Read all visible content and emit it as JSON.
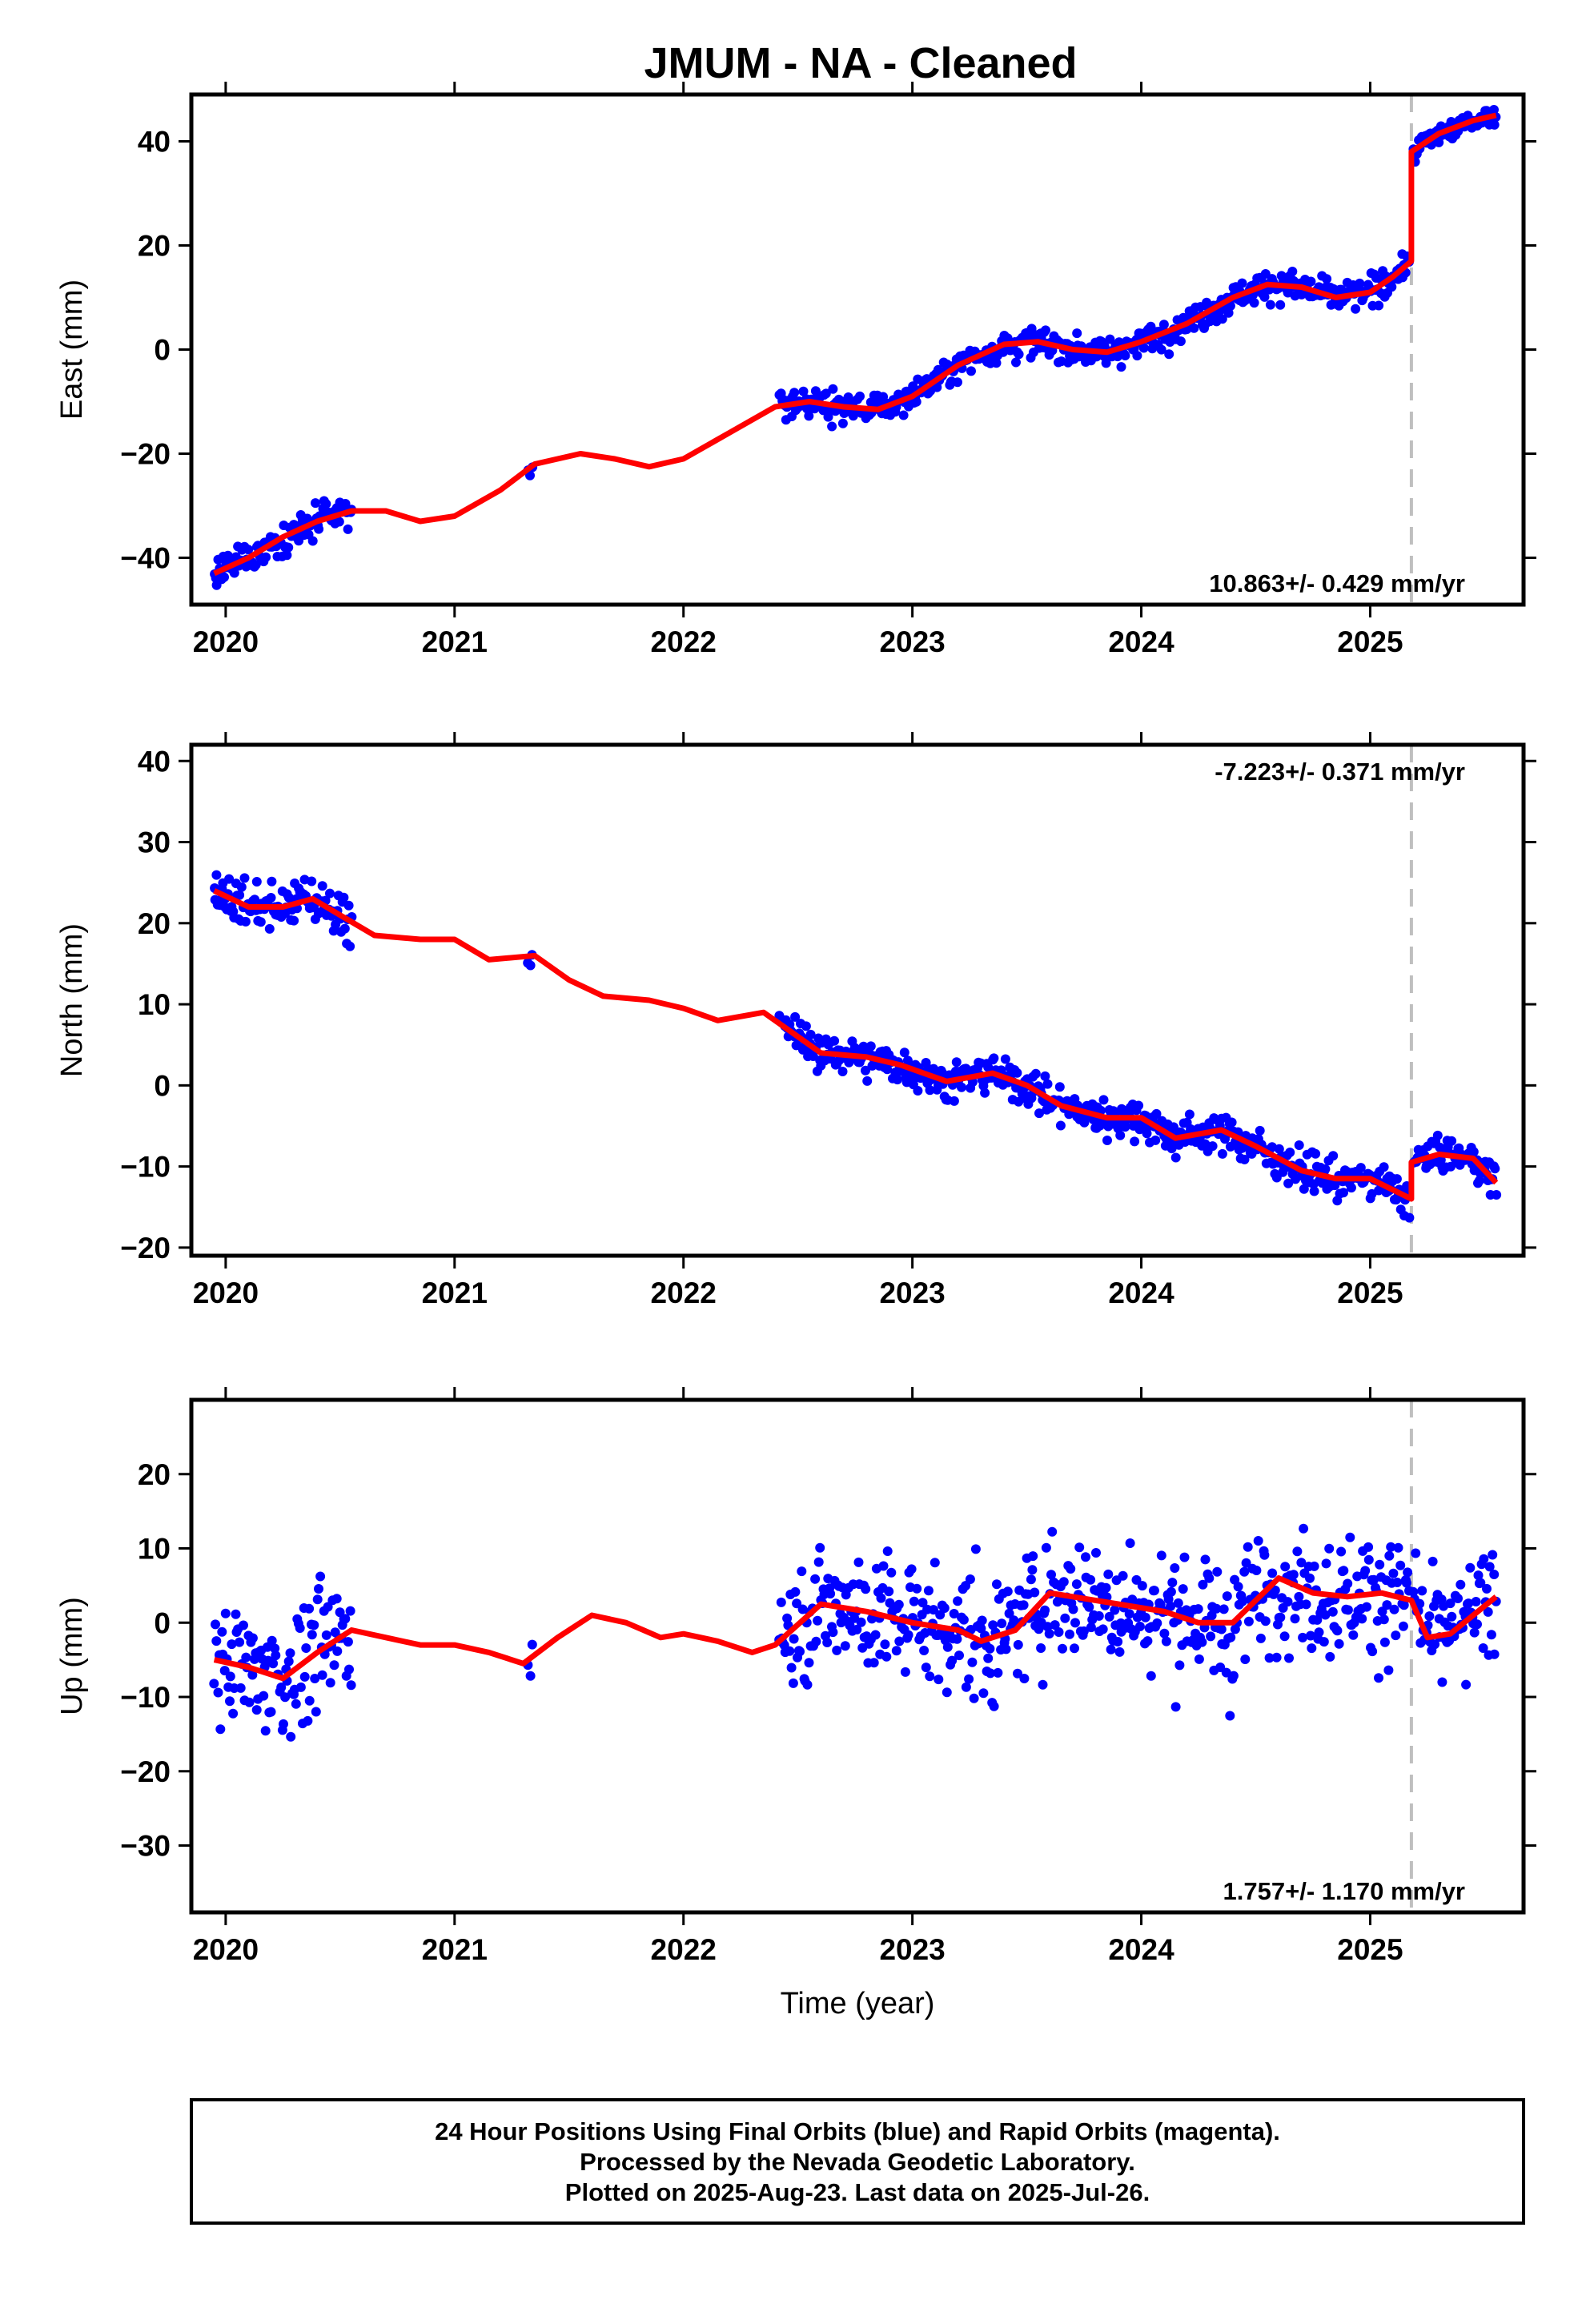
{
  "title": "JMUM  - NA - Cleaned",
  "colors": {
    "final": "#0000ff",
    "rapid": "#ff00ff",
    "model": "#ff0000",
    "event_line": "#bfbfbf"
  },
  "footer": {
    "lines": [
      "24 Hour Positions Using Final Orbits (blue) and Rapid Orbits (magenta).",
      "Processed by the Nevada Geodetic Laboratory.",
      "Plotted on 2025-Aug-23. Last data on 2025-Jul-26."
    ]
  },
  "chart_data": [
    {
      "type": "scatter",
      "ylabel": "East (mm)",
      "xlabel": "",
      "xlim": [
        2019.85,
        2025.67
      ],
      "ylim": [
        -49,
        49
      ],
      "xticks": [
        2020,
        2021,
        2022,
        2023,
        2024,
        2025
      ],
      "xtick_labels": [
        "2020",
        "2021",
        "2022",
        "2023",
        "2024",
        "2025"
      ],
      "yticks": [
        -40,
        -20,
        0,
        20,
        40
      ],
      "ytick_labels": [
        "−40",
        "−20",
        "0",
        "20",
        "40"
      ],
      "rate_label": "10.863+/- 0.429 mm/yr",
      "rate_position": "bottom-right",
      "event_line_x": 2025.18,
      "model": {
        "x": [
          2019.95,
          2020.1,
          2020.25,
          2020.4,
          2020.55,
          2020.7,
          2020.85,
          2021.0,
          2021.2,
          2021.35,
          2021.55,
          2021.7,
          2021.85,
          2022.0,
          2022.2,
          2022.4,
          2022.55,
          2022.7,
          2022.85,
          2023.0,
          2023.2,
          2023.4,
          2023.55,
          2023.7,
          2023.85,
          2024.0,
          2024.2,
          2024.4,
          2024.55,
          2024.7,
          2024.85,
          2025.0,
          2025.1,
          2025.18,
          2025.18,
          2025.3,
          2025.45,
          2025.55
        ],
        "y": [
          -43,
          -40,
          -36,
          -33,
          -31,
          -31,
          -33,
          -32,
          -27,
          -22,
          -20,
          -21,
          -22.5,
          -21,
          -16,
          -11,
          -10,
          -11,
          -11.5,
          -9,
          -3,
          1,
          1.5,
          0,
          -0.5,
          1.5,
          5,
          10,
          12.5,
          12,
          10,
          11,
          14,
          17,
          38,
          41.5,
          44,
          45
        ]
      },
      "series": [
        {
          "name": "Final Orbits",
          "segments": [
            {
              "x0": 2019.95,
              "x1": 2020.55,
              "n": 110,
              "spread": 2.3
            },
            {
              "x0": 2021.32,
              "x1": 2021.34,
              "n": 3,
              "spread": 1.0
            },
            {
              "x0": 2022.42,
              "x1": 2025.17,
              "n": 520,
              "spread": 2.0
            },
            {
              "x0": 2025.19,
              "x1": 2025.55,
              "n": 70,
              "spread": 1.5
            }
          ]
        }
      ]
    },
    {
      "type": "scatter",
      "ylabel": "North (mm)",
      "xlabel": "",
      "xlim": [
        2019.85,
        2025.67
      ],
      "ylim": [
        -21,
        42
      ],
      "xticks": [
        2020,
        2021,
        2022,
        2023,
        2024,
        2025
      ],
      "xtick_labels": [
        "2020",
        "2021",
        "2022",
        "2023",
        "2024",
        "2025"
      ],
      "yticks": [
        -20,
        -10,
        0,
        10,
        20,
        30,
        40
      ],
      "ytick_labels": [
        "−20",
        "−10",
        "0",
        "10",
        "20",
        "30",
        "40"
      ],
      "rate_label": "-7.223+/- 0.371 mm/yr",
      "rate_position": "top-right",
      "event_line_x": 2025.18,
      "model": {
        "x": [
          2019.95,
          2020.1,
          2020.25,
          2020.38,
          2020.5,
          2020.65,
          2020.85,
          2021.0,
          2021.15,
          2021.35,
          2021.5,
          2021.65,
          2021.85,
          2022.0,
          2022.15,
          2022.35,
          2022.45,
          2022.6,
          2022.8,
          2022.95,
          2023.15,
          2023.35,
          2023.5,
          2023.65,
          2023.85,
          2024.0,
          2024.15,
          2024.35,
          2024.5,
          2024.7,
          2024.85,
          2025.0,
          2025.18,
          2025.18,
          2025.3,
          2025.45,
          2025.55
        ],
        "y": [
          24,
          22,
          22,
          23,
          21,
          18.5,
          18,
          18,
          15.5,
          16,
          13,
          11,
          10.5,
          9.5,
          8,
          9,
          7,
          4,
          3.5,
          2.5,
          0.5,
          1.5,
          0,
          -2.5,
          -4,
          -4,
          -6.5,
          -5.5,
          -7.5,
          -10.5,
          -11.5,
          -11.5,
          -14,
          -9.5,
          -8.5,
          -9,
          -12
        ]
      },
      "series": [
        {
          "name": "Final Orbits",
          "segments": [
            {
              "x0": 2019.95,
              "x1": 2020.55,
              "n": 110,
              "spread": 2.0
            },
            {
              "x0": 2021.32,
              "x1": 2021.34,
              "n": 3,
              "spread": 1.0
            },
            {
              "x0": 2022.42,
              "x1": 2025.17,
              "n": 520,
              "spread": 1.6
            },
            {
              "x0": 2025.19,
              "x1": 2025.55,
              "n": 70,
              "spread": 1.6
            }
          ]
        }
      ]
    },
    {
      "type": "scatter",
      "ylabel": "Up (mm)",
      "xlabel": "Time (year)",
      "xlim": [
        2019.85,
        2025.67
      ],
      "ylim": [
        -39,
        30
      ],
      "xticks": [
        2020,
        2021,
        2022,
        2023,
        2024,
        2025
      ],
      "xtick_labels": [
        "2020",
        "2021",
        "2022",
        "2023",
        "2024",
        "2025"
      ],
      "yticks": [
        -30,
        -20,
        -10,
        0,
        10,
        20
      ],
      "ytick_labels": [
        "−30",
        "−20",
        "−10",
        "0",
        "10",
        "20"
      ],
      "rate_label": "1.757+/- 1.170 mm/yr",
      "rate_position": "bottom-right",
      "event_line_x": 2025.18,
      "model": {
        "x": [
          2019.95,
          2020.1,
          2020.25,
          2020.4,
          2020.55,
          2020.7,
          2020.85,
          2021.0,
          2021.15,
          2021.3,
          2021.45,
          2021.6,
          2021.75,
          2021.9,
          2022.0,
          2022.15,
          2022.3,
          2022.4,
          2022.6,
          2022.8,
          2023.0,
          2023.2,
          2023.3,
          2023.45,
          2023.6,
          2023.8,
          2024.0,
          2024.1,
          2024.25,
          2024.4,
          2024.6,
          2024.75,
          2024.9,
          2025.05,
          2025.18,
          2025.25,
          2025.35,
          2025.45,
          2025.55
        ],
        "y": [
          -5,
          -6,
          -7.5,
          -4,
          -1,
          -2,
          -3,
          -3,
          -4,
          -5.5,
          -2,
          1,
          0,
          -2,
          -1.5,
          -2.5,
          -4,
          -3,
          2.5,
          1.5,
          0,
          -1,
          -2.5,
          -1,
          4,
          3,
          2,
          1.5,
          0,
          0,
          6,
          4,
          3.5,
          4,
          3,
          -2,
          -1.5,
          1,
          3.5
        ]
      },
      "series": [
        {
          "name": "Final Orbits",
          "segments": [
            {
              "x0": 2019.95,
              "x1": 2020.55,
              "n": 110,
              "spread": 5.5
            },
            {
              "x0": 2021.32,
              "x1": 2021.34,
              "n": 3,
              "spread": 1.5
            },
            {
              "x0": 2022.42,
              "x1": 2025.17,
              "n": 520,
              "spread": 6.0
            },
            {
              "x0": 2025.19,
              "x1": 2025.55,
              "n": 70,
              "spread": 5.0
            }
          ]
        }
      ]
    }
  ]
}
